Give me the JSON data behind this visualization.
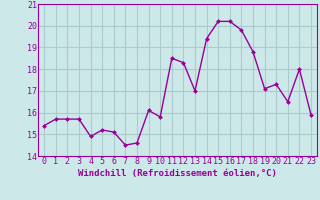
{
  "x": [
    0,
    1,
    2,
    3,
    4,
    5,
    6,
    7,
    8,
    9,
    10,
    11,
    12,
    13,
    14,
    15,
    16,
    17,
    18,
    19,
    20,
    21,
    22,
    23
  ],
  "y": [
    15.4,
    15.7,
    15.7,
    15.7,
    14.9,
    15.2,
    15.1,
    14.5,
    14.6,
    16.1,
    15.8,
    18.5,
    18.3,
    17.0,
    19.4,
    20.2,
    20.2,
    19.8,
    18.8,
    17.1,
    17.3,
    16.5,
    18.0,
    15.9
  ],
  "line_color": "#990099",
  "marker": "D",
  "marker_size": 2.0,
  "linewidth": 1.0,
  "background_color": "#cce8e8",
  "grid_color": "#aacccc",
  "text_color": "#990099",
  "xlabel": "Windchill (Refroidissement éolien,°C)",
  "xlabel_fontsize": 6.5,
  "tick_fontsize": 6.0,
  "ylim": [
    14,
    21
  ],
  "yticks": [
    14,
    15,
    16,
    17,
    18,
    19,
    20,
    21
  ],
  "xlim": [
    -0.5,
    23.5
  ],
  "xticks": [
    0,
    1,
    2,
    3,
    4,
    5,
    6,
    7,
    8,
    9,
    10,
    11,
    12,
    13,
    14,
    15,
    16,
    17,
    18,
    19,
    20,
    21,
    22,
    23
  ]
}
